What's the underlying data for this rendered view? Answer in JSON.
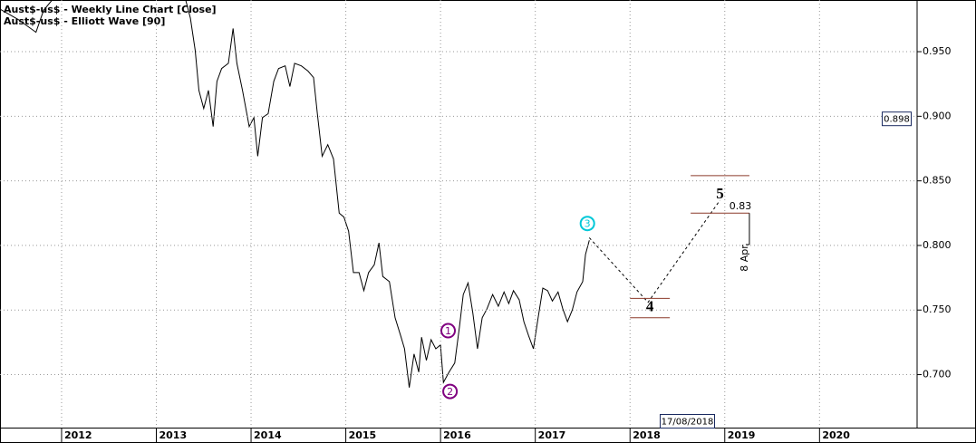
{
  "chart_data": {
    "type": "line",
    "title": "Aust$-us$ - Weekly Line Chart [Close]",
    "subtitle": "Aust$-us$ - Elliott Wave [90]",
    "xlim": [
      2011.35,
      2021.03
    ],
    "ylim": [
      0.659,
      0.99
    ],
    "xticks": [
      2012,
      2013,
      2014,
      2015,
      2016,
      2017,
      2018,
      2019,
      2020
    ],
    "yticks": [
      {
        "value": 0.7,
        "label": "0.700"
      },
      {
        "value": 0.75,
        "label": "0.750"
      },
      {
        "value": 0.8,
        "label": "0.800"
      },
      {
        "value": 0.85,
        "label": "0.850"
      },
      {
        "value": 0.9,
        "label": "0.900"
      },
      {
        "value": 0.95,
        "label": "0.950"
      }
    ],
    "grid": true,
    "series": [
      {
        "name": "Close",
        "color": "#000000",
        "x": [
          2011.35,
          2011.54,
          2011.73,
          2011.81,
          2011.9,
          2012.6,
          2013.31,
          2013.36,
          2013.41,
          2013.45,
          2013.5,
          2013.55,
          2013.6,
          2013.64,
          2013.69,
          2013.76,
          2013.81,
          2013.85,
          2013.91,
          2013.98,
          2014.03,
          2014.07,
          2014.12,
          2014.18,
          2014.24,
          2014.29,
          2014.36,
          2014.41,
          2014.46,
          2014.53,
          2014.6,
          2014.66,
          2014.7,
          2014.75,
          2014.81,
          2014.87,
          2014.93,
          2014.98,
          2015.03,
          2015.08,
          2015.14,
          2015.19,
          2015.24,
          2015.3,
          2015.35,
          2015.39,
          2015.46,
          2015.52,
          2015.58,
          2015.62,
          2015.67,
          2015.72,
          2015.77,
          2015.8,
          2015.85,
          2015.9,
          2015.95,
          2016.0,
          2016.03,
          2016.09,
          2016.15,
          2016.2,
          2016.24,
          2016.29,
          2016.34,
          2016.39,
          2016.44,
          2016.49,
          2016.55,
          2016.61,
          2016.67,
          2016.72,
          2016.77,
          2016.83,
          2016.88,
          2016.93,
          2016.98,
          2017.03,
          2017.08,
          2017.13,
          2017.18,
          2017.24,
          2017.29,
          2017.34,
          2017.39,
          2017.44,
          2017.5,
          2017.53,
          2017.57
        ],
        "values": [
          0.983,
          0.975,
          0.965,
          0.982,
          0.99,
          null,
          0.99,
          0.976,
          0.951,
          0.92,
          0.906,
          0.92,
          0.892,
          0.927,
          0.937,
          0.941,
          0.968,
          0.941,
          0.92,
          0.892,
          0.899,
          0.869,
          0.899,
          0.902,
          0.927,
          0.937,
          0.939,
          0.923,
          0.941,
          0.939,
          0.935,
          0.93,
          0.902,
          0.869,
          0.878,
          0.867,
          0.825,
          0.822,
          0.811,
          0.779,
          0.779,
          0.765,
          0.779,
          0.785,
          0.802,
          0.776,
          0.772,
          0.744,
          0.73,
          0.72,
          0.69,
          0.716,
          0.702,
          0.729,
          0.711,
          0.727,
          0.72,
          0.723,
          0.694,
          0.702,
          0.709,
          0.737,
          0.762,
          0.771,
          0.748,
          0.72,
          0.744,
          0.751,
          0.762,
          0.753,
          0.764,
          0.755,
          0.765,
          0.758,
          0.741,
          0.73,
          0.72,
          0.744,
          0.767,
          0.765,
          0.757,
          0.764,
          0.751,
          0.741,
          0.75,
          0.764,
          0.772,
          0.793,
          0.804
        ]
      }
    ],
    "projection": {
      "color": "#000000",
      "x": [
        2017.57,
        2018.19,
        2018.95
      ],
      "values": [
        0.806,
        0.756,
        0.835
      ]
    },
    "waves": [
      {
        "label": "1",
        "x": 2016.08,
        "y": 0.734,
        "circled": true,
        "color": "#800080"
      },
      {
        "label": "2",
        "x": 2016.1,
        "y": 0.687,
        "circled": true,
        "color": "#800080"
      },
      {
        "label": "3",
        "x": 2017.55,
        "y": 0.817,
        "circled": true,
        "color": "#00c8d8"
      },
      {
        "label": "4",
        "x": 2018.21,
        "y": 0.752,
        "circled": false,
        "color": "#000000"
      },
      {
        "label": "5",
        "x": 2018.95,
        "y": 0.839,
        "circled": false,
        "color": "#000000"
      }
    ],
    "levels": [
      {
        "value": 0.854,
        "x": [
          2018.64,
          2019.26
        ]
      },
      {
        "value": 0.825,
        "x": [
          2018.64,
          2019.26
        ]
      },
      {
        "value": 0.759,
        "x": [
          2018.0,
          2018.42
        ]
      },
      {
        "value": 0.744,
        "x": [
          2018.0,
          2018.42
        ]
      }
    ],
    "level_color": "#8b3a2a",
    "target": 0.83,
    "target_date": "8 Apr",
    "last_price": 0.898,
    "date_label": "17/08/2018"
  }
}
